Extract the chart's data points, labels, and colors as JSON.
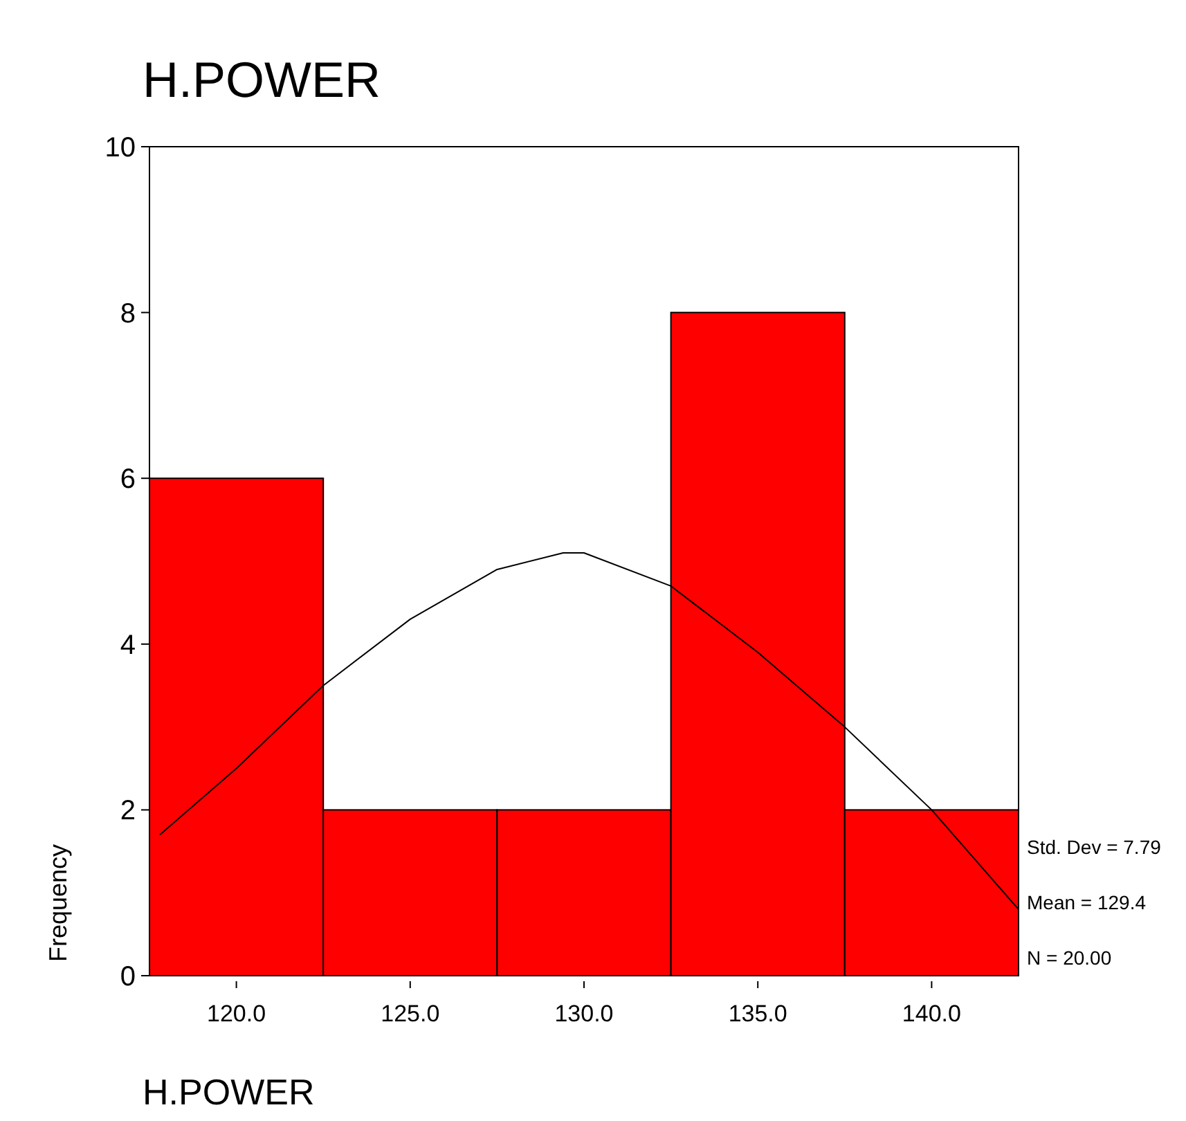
{
  "chart_data": {
    "type": "histogram",
    "title": "H.POWER",
    "xlabel": "H.POWER",
    "ylabel": "Frequency",
    "bins": [
      117.5,
      122.5,
      127.5,
      132.5,
      137.5,
      142.5
    ],
    "values": [
      6,
      2,
      2,
      8,
      2
    ],
    "color": "#ff0000",
    "series": [
      {
        "type": "line",
        "color": "#000000",
        "x": [
          117.8,
          120,
          122.5,
          125,
          127.5,
          129.4,
          130,
          132.5,
          135,
          137.5,
          140,
          142.5
        ],
        "values": [
          1.7,
          2.5,
          3.5,
          4.3,
          4.9,
          5.1,
          5.1,
          4.7,
          3.9,
          3.0,
          2.0,
          0.8
        ]
      }
    ],
    "xlim": [
      117.5,
      142.5
    ],
    "xticks": [
      {
        "value": 120,
        "label": "120.0"
      },
      {
        "value": 125,
        "label": "125.0"
      },
      {
        "value": 130,
        "label": "130.0"
      },
      {
        "value": 135,
        "label": "135.0"
      },
      {
        "value": 140,
        "label": "140.0"
      }
    ],
    "ylim": [
      0,
      10
    ],
    "yticks": [
      0,
      2,
      4,
      6,
      8,
      10
    ],
    "grid": false,
    "annotations": [
      "Std. Dev = 7.79",
      "Mean = 129.4",
      "N = 20.00"
    ]
  }
}
